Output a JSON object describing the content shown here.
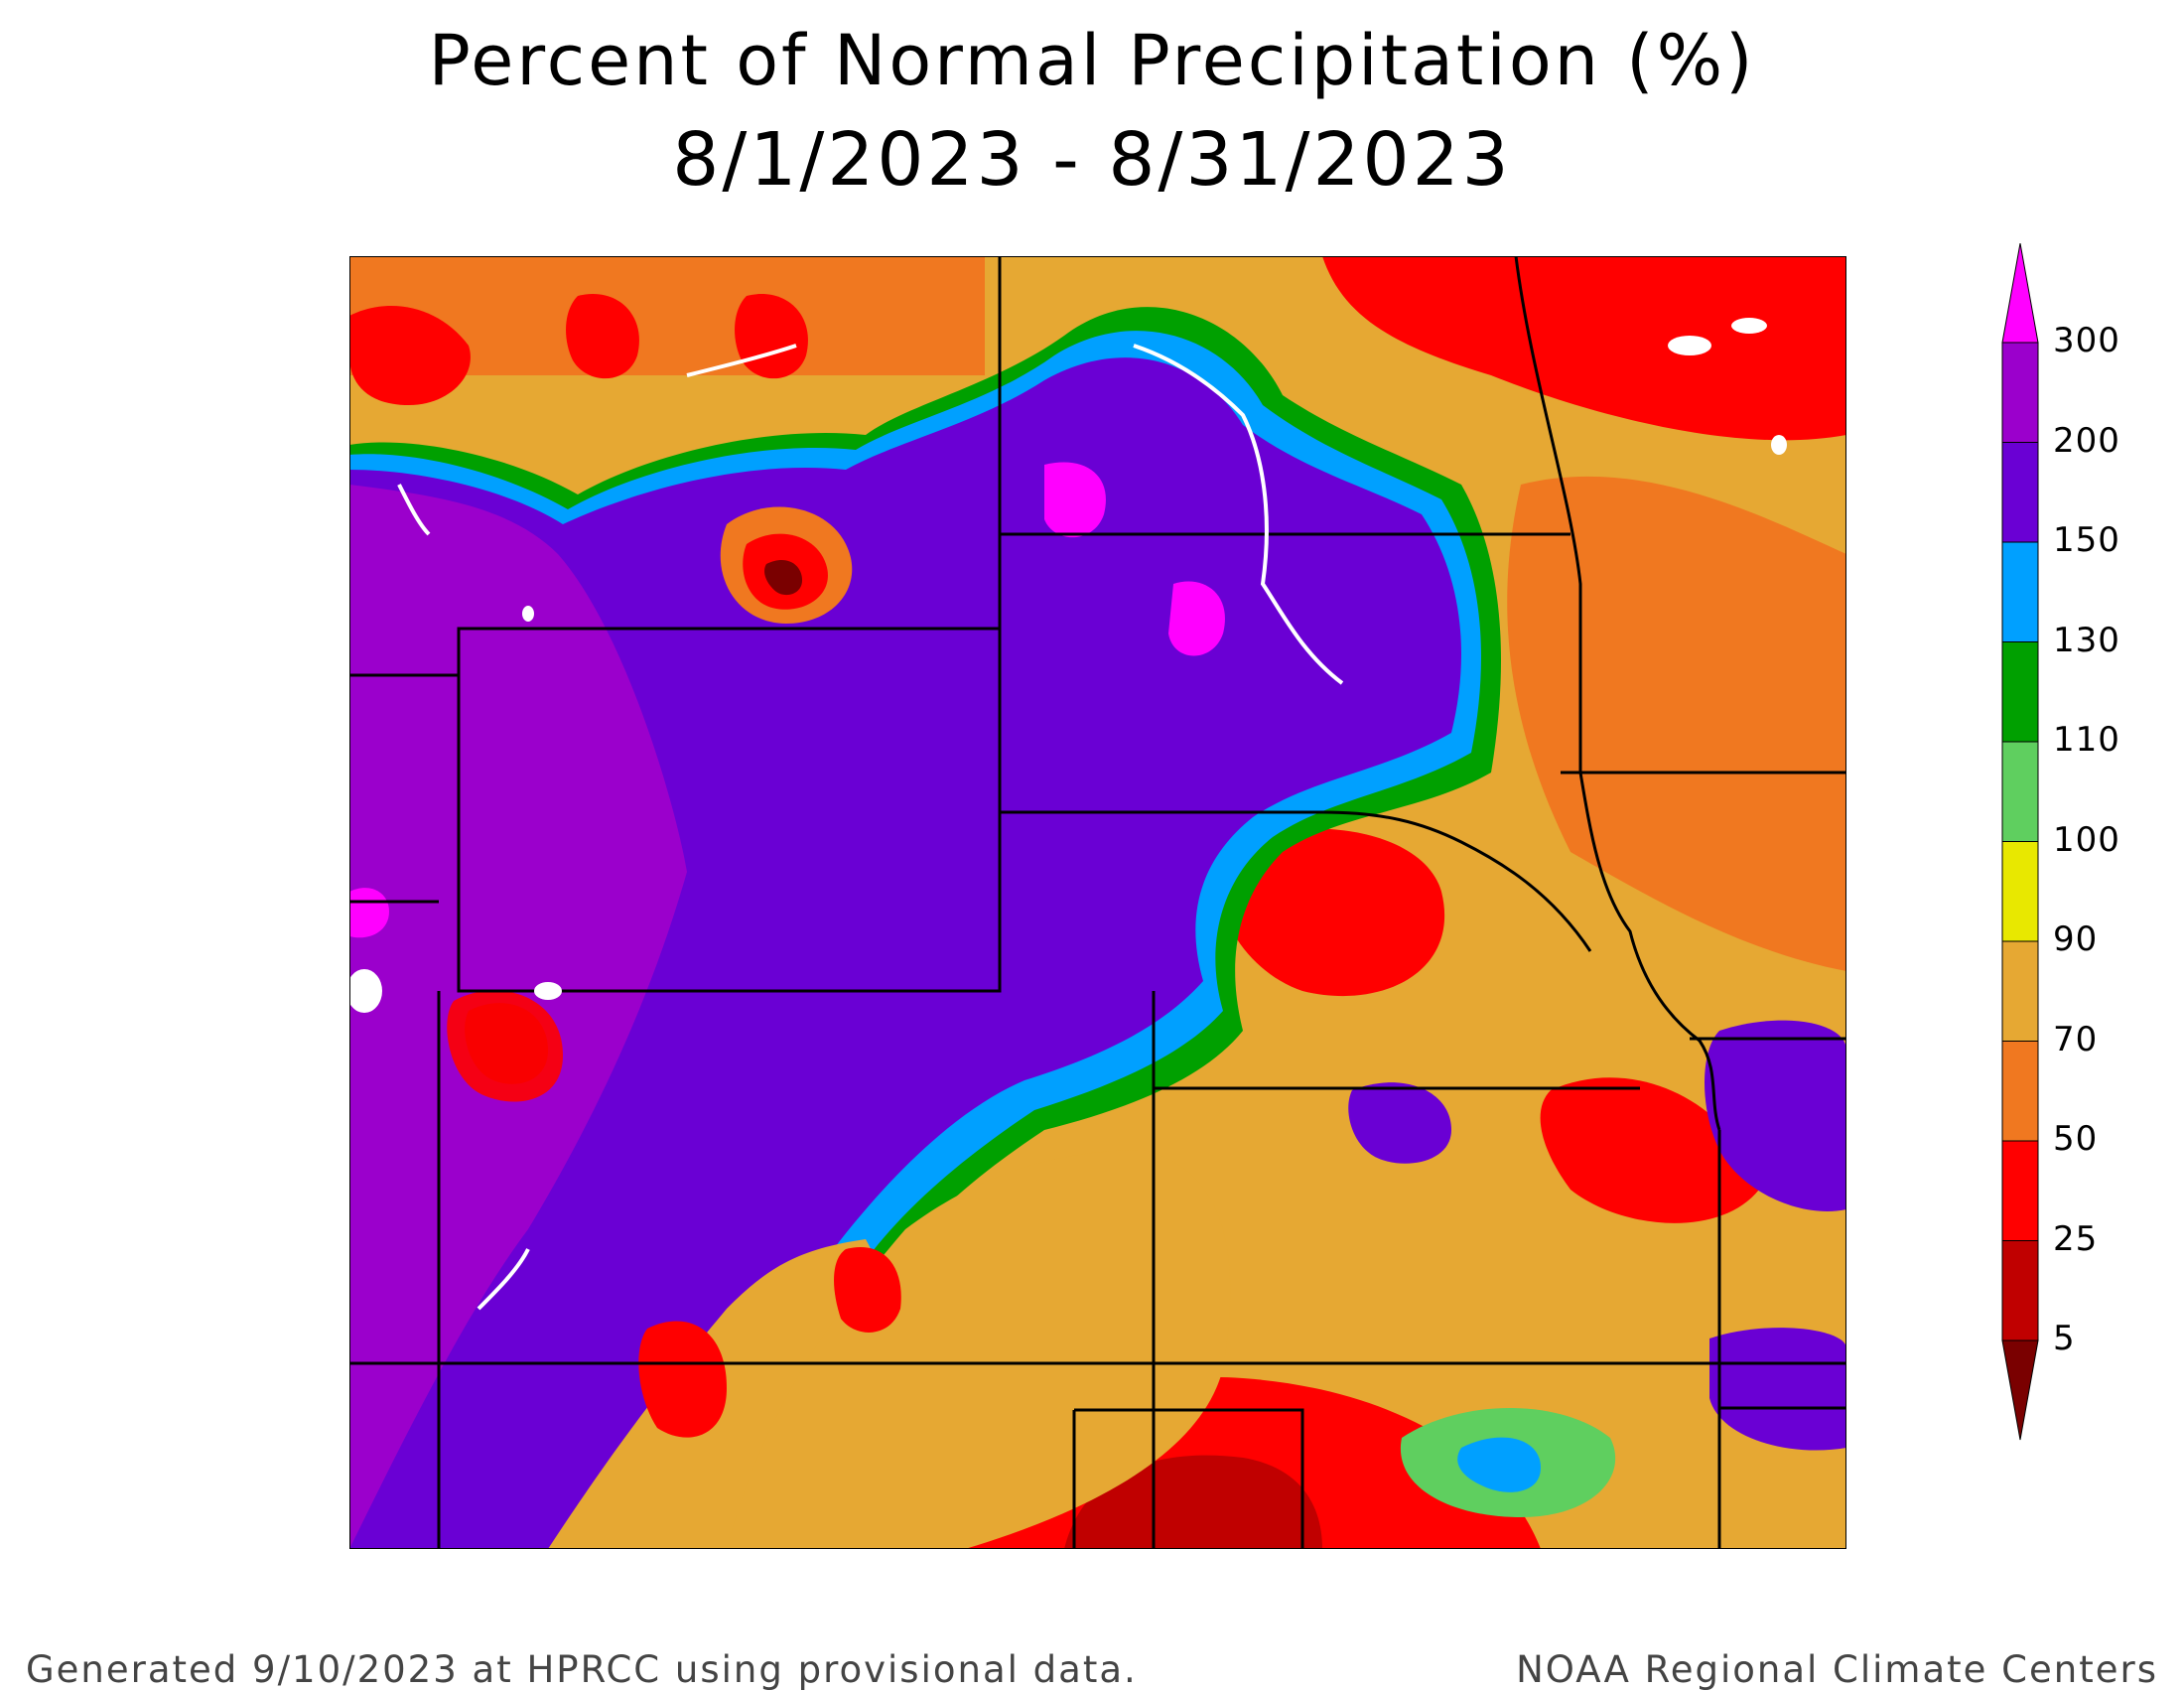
{
  "title": {
    "line1": "Percent of Normal Precipitation (%)",
    "line2": "8/1/2023 - 8/31/2023"
  },
  "footer": {
    "left": "Generated 9/10/2023 at HPRCC using provisional data.",
    "right": "NOAA Regional Climate Centers"
  },
  "legend": {
    "labels": [
      "300",
      "200",
      "150",
      "130",
      "110",
      "100",
      "90",
      "70",
      "50",
      "25",
      "5"
    ],
    "bins": [
      {
        "color": "#ff00ff"
      },
      {
        "color": "#9b00cc"
      },
      {
        "color": "#6a00d4"
      },
      {
        "color": "#00a0ff"
      },
      {
        "color": "#00a000"
      },
      {
        "color": "#5fcf5f"
      },
      {
        "color": "#e8e800"
      },
      {
        "color": "#e6a833"
      },
      {
        "color": "#f07820"
      },
      {
        "color": "#ff0000"
      },
      {
        "color": "#c00000"
      },
      {
        "color": "#7a0000"
      }
    ]
  },
  "map": {
    "category_colors": {
      "p300": "#ff00ff",
      "p200_300": "#9b00cc",
      "p150_200": "#6a00d4",
      "p130_150": "#00a0ff",
      "p110_130": "#00a000",
      "p100_110": "#5fcf5f",
      "p90_100": "#e8e800",
      "p70_90": "#e6a833",
      "p50_70": "#f07820",
      "p25_50": "#ff0000",
      "p5_25": "#c00000",
      "p0_5": "#7a0000"
    }
  }
}
